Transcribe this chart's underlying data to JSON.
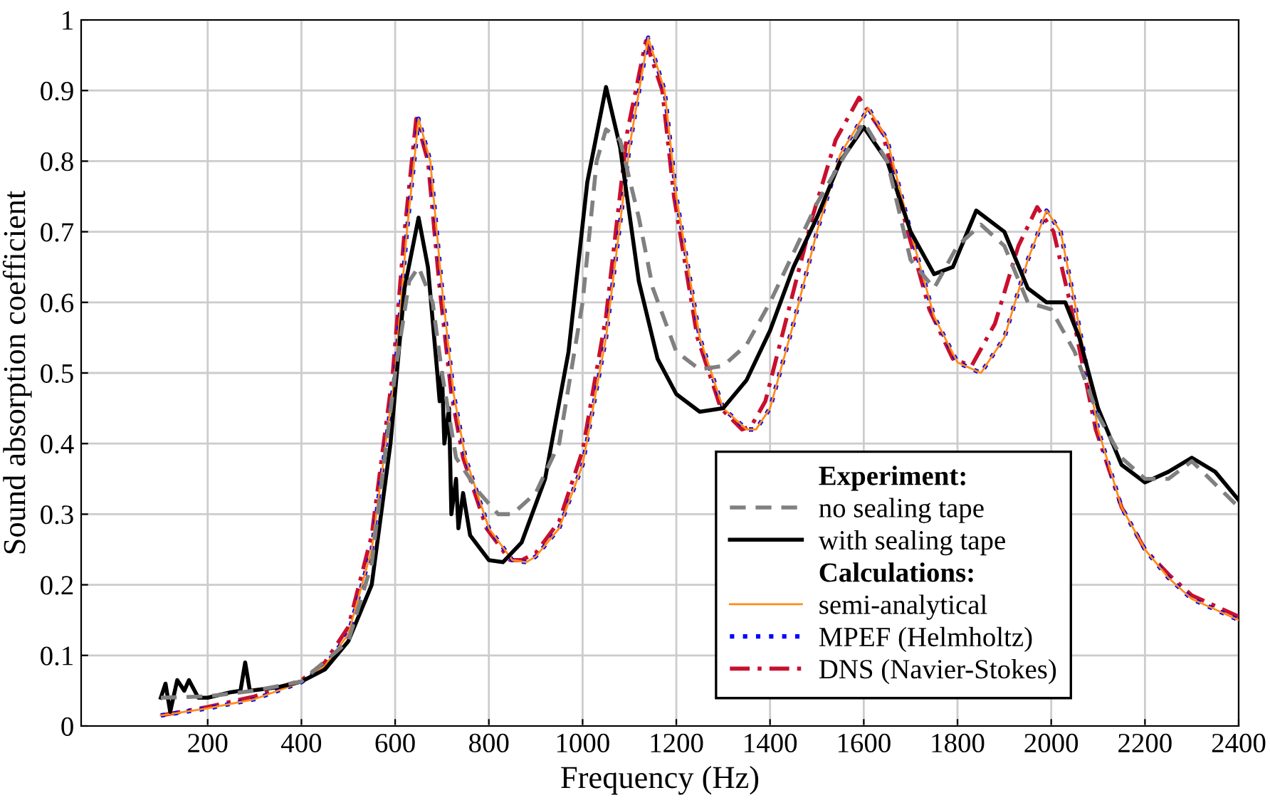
{
  "chart_data": {
    "type": "line",
    "xlabel": "Frequency (Hz)",
    "ylabel": "Sound absorption coefficient",
    "xlim": [
      -70,
      2400
    ],
    "xticks": [
      200,
      400,
      600,
      800,
      1000,
      1200,
      1400,
      1600,
      1800,
      2000,
      2200,
      2400
    ],
    "ylim": [
      0,
      1
    ],
    "yticks": [
      0,
      0.1,
      0.2,
      0.3,
      0.4,
      0.5,
      0.6,
      0.7,
      0.8,
      0.9,
      1
    ],
    "grid": true,
    "legend": "bottom right",
    "marker": "none",
    "annotations": [
      "Experiment:",
      "Calculations:"
    ],
    "series": [
      {
        "name": "no sealing tape",
        "color": "#808080",
        "line_style": "dashed",
        "x": [
          100,
          200,
          300,
          400,
          500,
          550,
          600,
          630,
          650,
          680,
          700,
          730,
          780,
          820,
          850,
          900,
          950,
          1000,
          1030,
          1050,
          1080,
          1120,
          1150,
          1200,
          1250,
          1300,
          1350,
          1400,
          1500,
          1600,
          1650,
          1700,
          1750,
          1800,
          1850,
          1900,
          1950,
          2000,
          2050,
          2100,
          2150,
          2200,
          2250,
          2300,
          2400
        ],
        "values": [
          0.04,
          0.042,
          0.05,
          0.063,
          0.12,
          0.23,
          0.5,
          0.63,
          0.65,
          0.6,
          0.5,
          0.38,
          0.33,
          0.3,
          0.3,
          0.33,
          0.4,
          0.6,
          0.8,
          0.845,
          0.83,
          0.72,
          0.62,
          0.53,
          0.505,
          0.51,
          0.54,
          0.6,
          0.74,
          0.855,
          0.8,
          0.66,
          0.62,
          0.68,
          0.71,
          0.68,
          0.6,
          0.59,
          0.53,
          0.44,
          0.38,
          0.35,
          0.35,
          0.375,
          0.31
        ]
      },
      {
        "name": "with sealing tape",
        "color": "#000000",
        "line_style": "solid",
        "x": [
          100,
          110,
          120,
          135,
          150,
          160,
          180,
          200,
          250,
          270,
          280,
          290,
          350,
          400,
          450,
          500,
          550,
          590,
          620,
          650,
          670,
          690,
          695,
          700,
          705,
          715,
          720,
          730,
          735,
          745,
          760,
          800,
          830,
          870,
          920,
          970,
          1010,
          1050,
          1080,
          1120,
          1160,
          1200,
          1250,
          1300,
          1350,
          1400,
          1450,
          1500,
          1550,
          1600,
          1650,
          1700,
          1750,
          1790,
          1840,
          1900,
          1950,
          1990,
          2030,
          2060,
          2100,
          2150,
          2200,
          2250,
          2300,
          2350,
          2400
        ],
        "values": [
          0.04,
          0.06,
          0.02,
          0.065,
          0.05,
          0.065,
          0.04,
          0.04,
          0.048,
          0.05,
          0.09,
          0.05,
          0.055,
          0.063,
          0.08,
          0.12,
          0.2,
          0.4,
          0.62,
          0.72,
          0.65,
          0.5,
          0.46,
          0.5,
          0.4,
          0.45,
          0.3,
          0.35,
          0.28,
          0.33,
          0.27,
          0.235,
          0.232,
          0.26,
          0.35,
          0.53,
          0.77,
          0.905,
          0.82,
          0.63,
          0.52,
          0.47,
          0.445,
          0.45,
          0.49,
          0.56,
          0.65,
          0.72,
          0.8,
          0.848,
          0.8,
          0.7,
          0.64,
          0.65,
          0.73,
          0.7,
          0.62,
          0.6,
          0.6,
          0.55,
          0.45,
          0.37,
          0.345,
          0.36,
          0.38,
          0.36,
          0.32
        ]
      },
      {
        "name": "semi-analytical",
        "color": "#ff8c1a",
        "line_style": "solid",
        "x": [
          100,
          200,
          300,
          400,
          450,
          500,
          550,
          600,
          625,
          650,
          675,
          700,
          725,
          750,
          800,
          850,
          880,
          900,
          950,
          1000,
          1050,
          1100,
          1140,
          1175,
          1200,
          1250,
          1300,
          1350,
          1370,
          1400,
          1450,
          1500,
          1550,
          1610,
          1650,
          1700,
          1750,
          1800,
          1850,
          1900,
          1950,
          1990,
          2020,
          2050,
          2100,
          2150,
          2200,
          2250,
          2300,
          2350,
          2400
        ],
        "values": [
          0.015,
          0.025,
          0.038,
          0.062,
          0.085,
          0.13,
          0.25,
          0.5,
          0.7,
          0.86,
          0.8,
          0.62,
          0.47,
          0.38,
          0.28,
          0.235,
          0.232,
          0.24,
          0.28,
          0.37,
          0.55,
          0.82,
          0.975,
          0.9,
          0.75,
          0.55,
          0.45,
          0.42,
          0.42,
          0.45,
          0.57,
          0.7,
          0.81,
          0.875,
          0.83,
          0.7,
          0.58,
          0.515,
          0.5,
          0.55,
          0.66,
          0.73,
          0.7,
          0.6,
          0.42,
          0.31,
          0.25,
          0.21,
          0.18,
          0.165,
          0.15
        ]
      },
      {
        "name": "MPEF (Helmholtz)",
        "color": "#0000ff",
        "line_style": "dotted",
        "x": [
          100,
          200,
          300,
          400,
          450,
          500,
          550,
          600,
          625,
          650,
          675,
          700,
          725,
          750,
          800,
          850,
          880,
          900,
          950,
          1000,
          1050,
          1100,
          1140,
          1175,
          1200,
          1250,
          1300,
          1350,
          1370,
          1400,
          1450,
          1500,
          1550,
          1610,
          1650,
          1700,
          1750,
          1800,
          1850,
          1900,
          1950,
          1990,
          2020,
          2050,
          2100,
          2150,
          2200,
          2250,
          2300,
          2350,
          2400
        ],
        "values": [
          0.015,
          0.025,
          0.038,
          0.062,
          0.085,
          0.13,
          0.25,
          0.5,
          0.7,
          0.86,
          0.8,
          0.62,
          0.47,
          0.38,
          0.28,
          0.235,
          0.232,
          0.24,
          0.28,
          0.37,
          0.55,
          0.82,
          0.975,
          0.9,
          0.75,
          0.55,
          0.45,
          0.42,
          0.42,
          0.45,
          0.57,
          0.7,
          0.81,
          0.875,
          0.83,
          0.7,
          0.58,
          0.515,
          0.5,
          0.55,
          0.66,
          0.73,
          0.7,
          0.6,
          0.42,
          0.31,
          0.25,
          0.21,
          0.18,
          0.165,
          0.15
        ]
      },
      {
        "name": "DNS (Navier-Stokes)",
        "color": "#c8102e",
        "line_style": "dashdot",
        "x": [
          100,
          200,
          300,
          400,
          450,
          500,
          550,
          595,
          620,
          645,
          670,
          695,
          720,
          745,
          795,
          845,
          870,
          900,
          950,
          1000,
          1050,
          1095,
          1135,
          1170,
          1195,
          1245,
          1295,
          1340,
          1360,
          1390,
          1440,
          1490,
          1540,
          1590,
          1640,
          1690,
          1740,
          1790,
          1830,
          1880,
          1930,
          1970,
          2005,
          2040,
          2095,
          2150,
          2200,
          2250,
          2300,
          2350,
          2400
        ],
        "values": [
          0.015,
          0.027,
          0.042,
          0.065,
          0.09,
          0.14,
          0.27,
          0.5,
          0.7,
          0.86,
          0.8,
          0.62,
          0.47,
          0.38,
          0.28,
          0.235,
          0.235,
          0.245,
          0.29,
          0.39,
          0.58,
          0.84,
          0.97,
          0.9,
          0.75,
          0.55,
          0.45,
          0.42,
          0.425,
          0.46,
          0.59,
          0.72,
          0.83,
          0.89,
          0.84,
          0.71,
          0.59,
          0.52,
          0.51,
          0.57,
          0.68,
          0.735,
          0.7,
          0.6,
          0.42,
          0.31,
          0.25,
          0.215,
          0.185,
          0.17,
          0.155
        ]
      }
    ]
  }
}
